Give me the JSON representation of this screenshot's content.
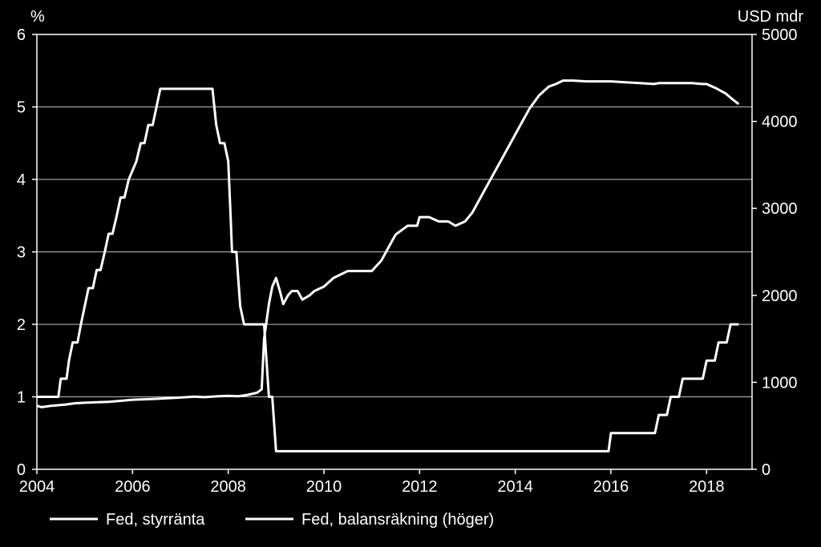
{
  "chart_data": {
    "type": "line",
    "left_axis": {
      "unit": "%",
      "ylim": [
        0,
        6
      ],
      "ticks": [
        "0",
        "1",
        "2",
        "3",
        "4",
        "5",
        "6"
      ]
    },
    "right_axis": {
      "unit": "USD mdr",
      "ylim": [
        0,
        5000
      ],
      "ticks": [
        "0",
        "1000",
        "2000",
        "3000",
        "4000",
        "5000"
      ]
    },
    "x_axis": {
      "xlim": [
        2004,
        2018.95
      ],
      "ticks": [
        "2004",
        "2006",
        "2008",
        "2010",
        "2012",
        "2014",
        "2016",
        "2018"
      ],
      "tick_values": [
        2004,
        2006,
        2008,
        2010,
        2012,
        2014,
        2016,
        2018
      ]
    },
    "grid": true,
    "legend_position": "bottom-left",
    "line_color": "#ffffff",
    "series": [
      {
        "name": "Fed, styrränta",
        "axis": "left",
        "points": [
          [
            2004.0,
            1.0
          ],
          [
            2004.45,
            1.0
          ],
          [
            2004.5,
            1.25
          ],
          [
            2004.62,
            1.25
          ],
          [
            2004.67,
            1.5
          ],
          [
            2004.75,
            1.75
          ],
          [
            2004.85,
            1.75
          ],
          [
            2004.92,
            2.0
          ],
          [
            2005.08,
            2.5
          ],
          [
            2005.17,
            2.5
          ],
          [
            2005.25,
            2.75
          ],
          [
            2005.33,
            2.75
          ],
          [
            2005.42,
            3.0
          ],
          [
            2005.5,
            3.25
          ],
          [
            2005.58,
            3.25
          ],
          [
            2005.67,
            3.5
          ],
          [
            2005.75,
            3.75
          ],
          [
            2005.83,
            3.75
          ],
          [
            2005.92,
            4.0
          ],
          [
            2006.08,
            4.25
          ],
          [
            2006.17,
            4.5
          ],
          [
            2006.25,
            4.5
          ],
          [
            2006.33,
            4.75
          ],
          [
            2006.42,
            4.75
          ],
          [
            2006.5,
            5.0
          ],
          [
            2006.58,
            5.25
          ],
          [
            2007.67,
            5.25
          ],
          [
            2007.75,
            4.75
          ],
          [
            2007.83,
            4.5
          ],
          [
            2007.92,
            4.5
          ],
          [
            2008.0,
            4.25
          ],
          [
            2008.05,
            3.5
          ],
          [
            2008.08,
            3.0
          ],
          [
            2008.17,
            3.0
          ],
          [
            2008.25,
            2.25
          ],
          [
            2008.33,
            2.0
          ],
          [
            2008.75,
            2.0
          ],
          [
            2008.8,
            1.5
          ],
          [
            2008.85,
            1.0
          ],
          [
            2008.92,
            1.0
          ],
          [
            2009.0,
            0.25
          ],
          [
            2015.95,
            0.25
          ],
          [
            2016.0,
            0.5
          ],
          [
            2016.92,
            0.5
          ],
          [
            2017.0,
            0.75
          ],
          [
            2017.17,
            0.75
          ],
          [
            2017.25,
            1.0
          ],
          [
            2017.42,
            1.0
          ],
          [
            2017.5,
            1.25
          ],
          [
            2017.92,
            1.25
          ],
          [
            2018.0,
            1.5
          ],
          [
            2018.17,
            1.5
          ],
          [
            2018.25,
            1.75
          ],
          [
            2018.42,
            1.75
          ],
          [
            2018.5,
            2.0
          ],
          [
            2018.67,
            2.0
          ]
        ]
      },
      {
        "name": "Fed, balansräkning (höger)",
        "axis": "right",
        "points": [
          [
            2004.0,
            730
          ],
          [
            2004.1,
            715
          ],
          [
            2004.3,
            730
          ],
          [
            2004.6,
            745
          ],
          [
            2004.8,
            760
          ],
          [
            2005.0,
            765
          ],
          [
            2005.2,
            770
          ],
          [
            2005.5,
            775
          ],
          [
            2005.8,
            790
          ],
          [
            2006.0,
            800
          ],
          [
            2006.5,
            810
          ],
          [
            2007.0,
            825
          ],
          [
            2007.3,
            835
          ],
          [
            2007.5,
            830
          ],
          [
            2007.8,
            840
          ],
          [
            2008.0,
            845
          ],
          [
            2008.2,
            840
          ],
          [
            2008.4,
            855
          ],
          [
            2008.6,
            880
          ],
          [
            2008.7,
            920
          ],
          [
            2008.75,
            1500
          ],
          [
            2008.85,
            1900
          ],
          [
            2008.92,
            2100
          ],
          [
            2009.0,
            2200
          ],
          [
            2009.08,
            2050
          ],
          [
            2009.15,
            1900
          ],
          [
            2009.25,
            2000
          ],
          [
            2009.33,
            2050
          ],
          [
            2009.45,
            2050
          ],
          [
            2009.55,
            1950
          ],
          [
            2009.7,
            2000
          ],
          [
            2009.8,
            2050
          ],
          [
            2010.0,
            2100
          ],
          [
            2010.2,
            2200
          ],
          [
            2010.5,
            2280
          ],
          [
            2010.8,
            2280
          ],
          [
            2011.0,
            2280
          ],
          [
            2011.2,
            2400
          ],
          [
            2011.4,
            2600
          ],
          [
            2011.5,
            2700
          ],
          [
            2011.75,
            2800
          ],
          [
            2011.95,
            2800
          ],
          [
            2012.0,
            2900
          ],
          [
            2012.2,
            2900
          ],
          [
            2012.4,
            2850
          ],
          [
            2012.6,
            2850
          ],
          [
            2012.75,
            2800
          ],
          [
            2012.95,
            2850
          ],
          [
            2013.1,
            2950
          ],
          [
            2013.3,
            3150
          ],
          [
            2013.5,
            3350
          ],
          [
            2013.7,
            3550
          ],
          [
            2013.95,
            3800
          ],
          [
            2014.1,
            3950
          ],
          [
            2014.3,
            4150
          ],
          [
            2014.5,
            4300
          ],
          [
            2014.7,
            4400
          ],
          [
            2014.85,
            4430
          ],
          [
            2015.0,
            4470
          ],
          [
            2015.2,
            4470
          ],
          [
            2015.5,
            4460
          ],
          [
            2015.8,
            4460
          ],
          [
            2016.0,
            4460
          ],
          [
            2016.3,
            4450
          ],
          [
            2016.6,
            4440
          ],
          [
            2016.9,
            4430
          ],
          [
            2017.0,
            4440
          ],
          [
            2017.2,
            4440
          ],
          [
            2017.5,
            4440
          ],
          [
            2017.7,
            4440
          ],
          [
            2017.9,
            4430
          ],
          [
            2018.0,
            4430
          ],
          [
            2018.2,
            4380
          ],
          [
            2018.4,
            4320
          ],
          [
            2018.55,
            4250
          ],
          [
            2018.67,
            4200
          ]
        ]
      }
    ]
  }
}
